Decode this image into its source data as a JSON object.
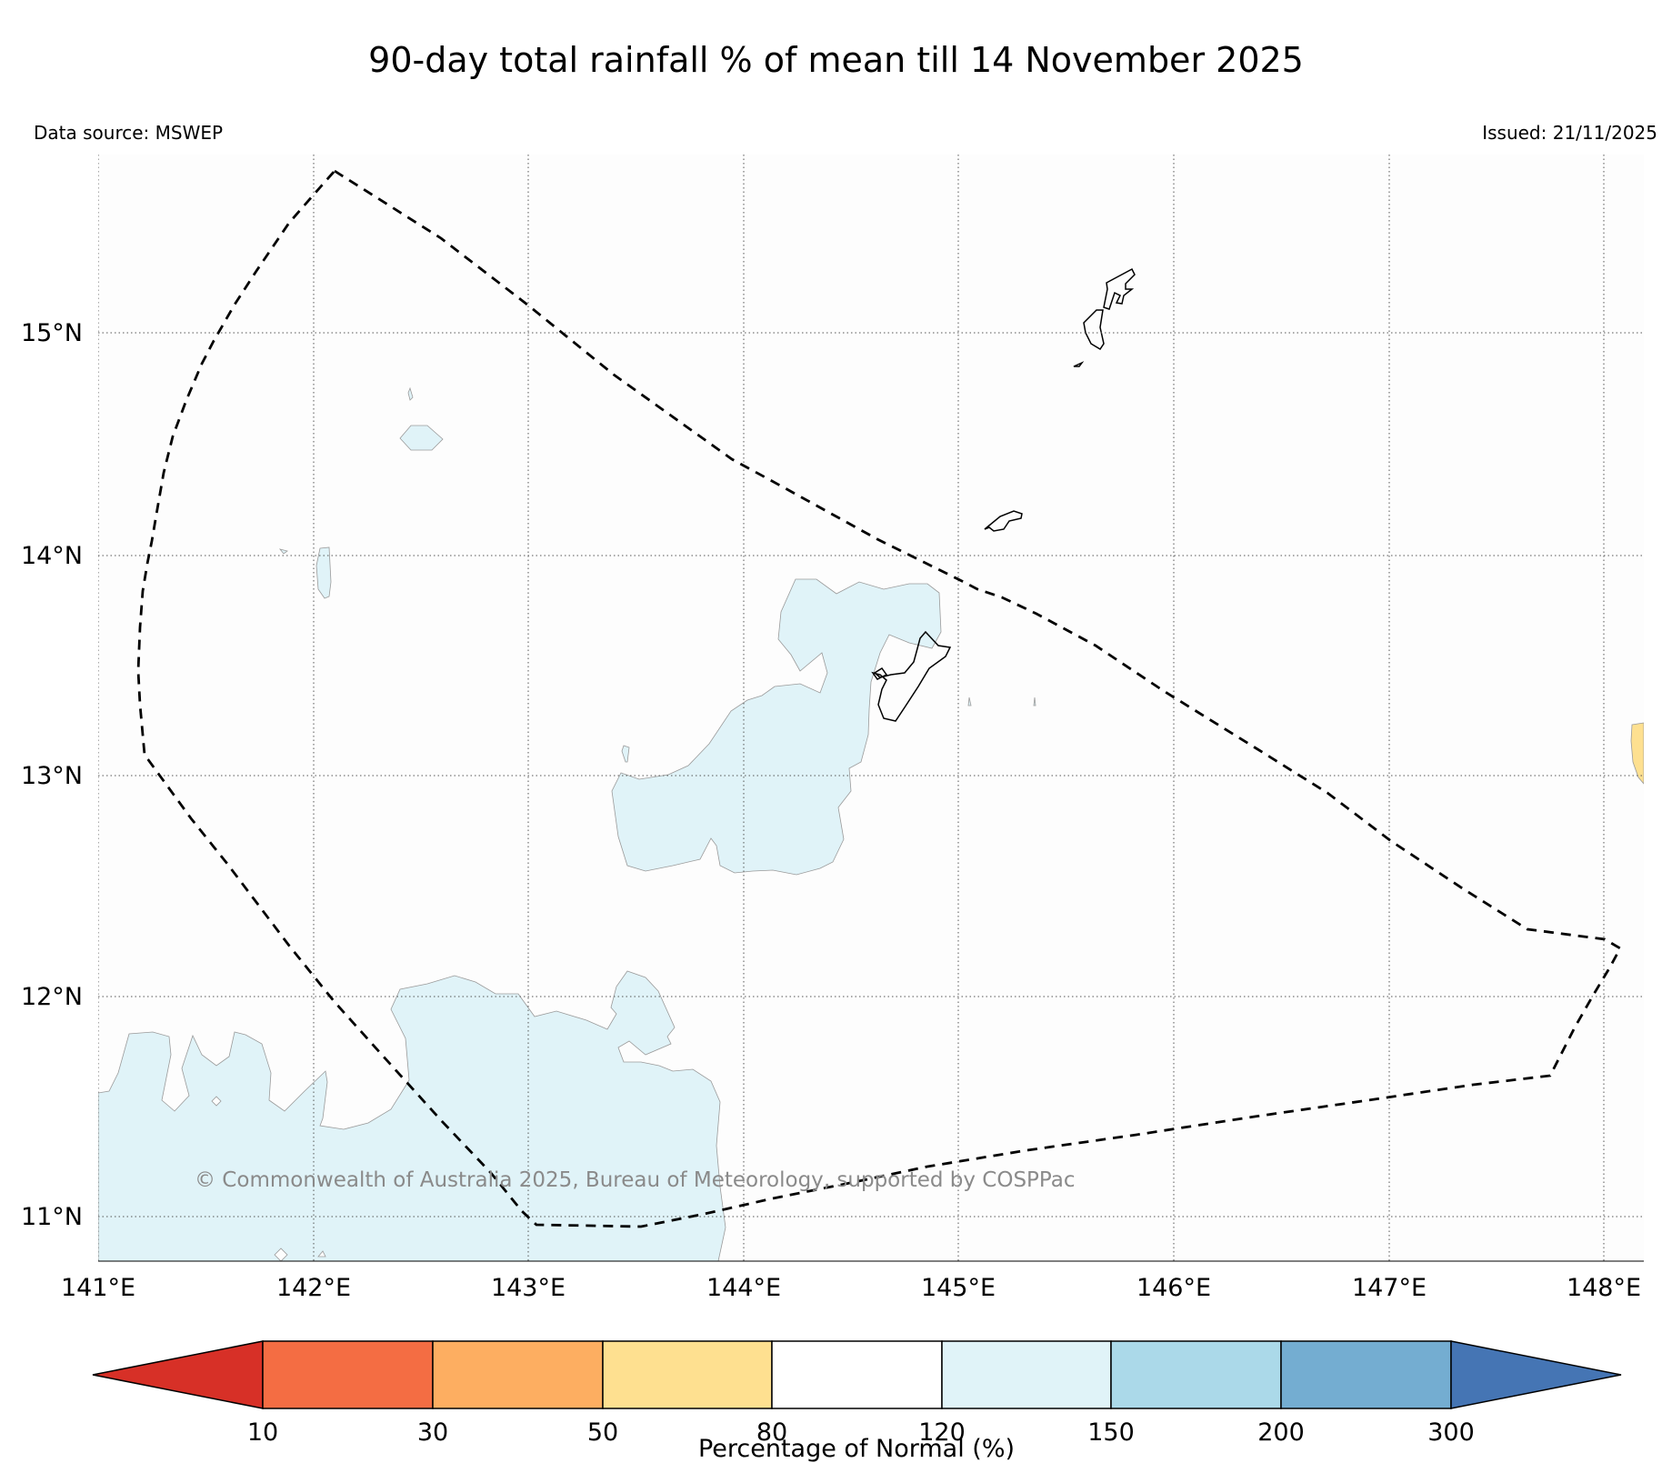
{
  "header": {
    "title": "90-day total rainfall % of mean till 14 November 2025",
    "data_source": "Data source: MSWEP",
    "issued": "Issued: 21/11/2025"
  },
  "map": {
    "lon_ticks": [
      "141°E",
      "142°E",
      "143°E",
      "144°E",
      "145°E",
      "146°E",
      "147°E",
      "148°E"
    ],
    "lat_ticks": [
      "15°N",
      "14°N",
      "13°N",
      "12°N",
      "11°N"
    ],
    "copyright": "© Commonwealth of Australia 2025, Bureau of Meteorology, supported by COSPPac",
    "colors": {
      "coast": "#000000",
      "land_fill": "#fdfdfd",
      "region_120_150": "#e0f3f8",
      "region_50_80": "#fee090",
      "zone_border": "#000000"
    }
  },
  "colorbar": {
    "label": "Percentage of Normal (%)",
    "ticks": [
      "10",
      "30",
      "50",
      "80",
      "120",
      "150",
      "200",
      "300"
    ],
    "colors": {
      "under": "#d73027",
      "c10_30": "#f46d43",
      "c30_50": "#fdae61",
      "c50_80": "#fee090",
      "c80_120": "#ffffff",
      "c120_150": "#e0f3f8",
      "c150_200": "#abd9e9",
      "c200_300": "#74add1",
      "over": "#4575b4"
    }
  }
}
